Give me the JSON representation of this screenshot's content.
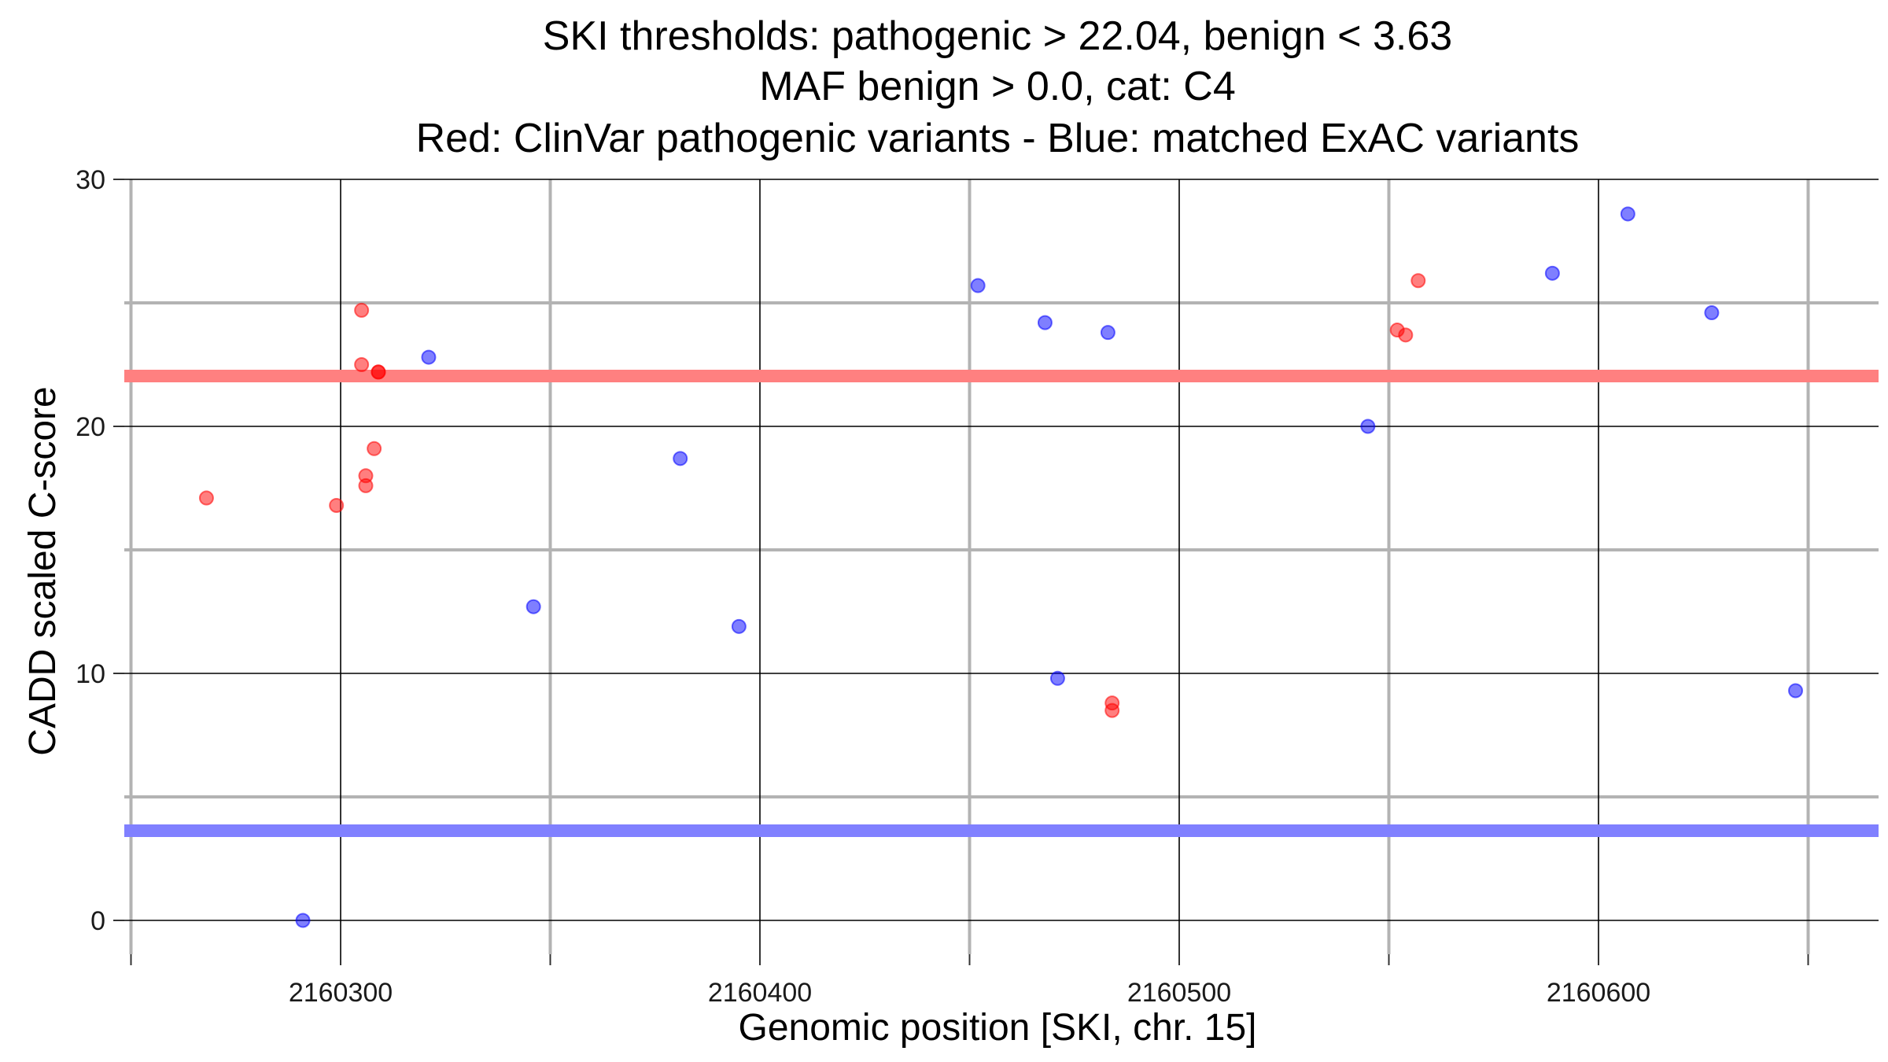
{
  "chart_data": {
    "type": "scatter",
    "title": [
      "SKI thresholds: pathogenic > 22.04, benign < 3.63",
      "MAF benign > 0.0, cat: C4",
      "Red: ClinVar pathogenic variants - Blue: matched ExAC variants"
    ],
    "xlabel": "Genomic position [SKI, chr. 15]",
    "ylabel": "CADD scaled C-score",
    "xlim": [
      2160250,
      2160665
    ],
    "ylim": [
      -1.5,
      30
    ],
    "x_major_ticks": [
      2160300,
      2160400,
      2160500,
      2160600
    ],
    "x_minor_ticks": [
      2160250,
      2160350,
      2160450,
      2160550,
      2160650
    ],
    "y_major_ticks": [
      0,
      10,
      20,
      30
    ],
    "y_minor_ticks": [
      5,
      15,
      25
    ],
    "grid": true,
    "thresholds": [
      {
        "name": "pathogenic",
        "value": 22.04,
        "color": "#ff8080"
      },
      {
        "name": "benign",
        "value": 3.63,
        "color": "#8080ff"
      }
    ],
    "series": [
      {
        "color": "#ff0000",
        "points": [
          {
            "x": 2160268,
            "y": 17.1
          },
          {
            "x": 2160299,
            "y": 16.8
          },
          {
            "x": 2160305,
            "y": 24.7
          },
          {
            "x": 2160305,
            "y": 22.5
          },
          {
            "x": 2160306,
            "y": 18.0
          },
          {
            "x": 2160306,
            "y": 17.6
          },
          {
            "x": 2160308,
            "y": 19.1
          },
          {
            "x": 2160309,
            "y": 22.2
          },
          {
            "x": 2160309,
            "y": 22.2
          },
          {
            "x": 2160484,
            "y": 8.8
          },
          {
            "x": 2160484,
            "y": 8.5
          },
          {
            "x": 2160552,
            "y": 23.9
          },
          {
            "x": 2160554,
            "y": 23.7
          },
          {
            "x": 2160557,
            "y": 25.9
          }
        ]
      },
      {
        "color": "#0000ff",
        "points": [
          {
            "x": 2160291,
            "y": 0.0
          },
          {
            "x": 2160321,
            "y": 22.8
          },
          {
            "x": 2160346,
            "y": 12.7
          },
          {
            "x": 2160381,
            "y": 18.7
          },
          {
            "x": 2160395,
            "y": 11.9
          },
          {
            "x": 2160452,
            "y": 25.7
          },
          {
            "x": 2160468,
            "y": 24.2
          },
          {
            "x": 2160471,
            "y": 9.8
          },
          {
            "x": 2160483,
            "y": 23.8
          },
          {
            "x": 2160545,
            "y": 20.0
          },
          {
            "x": 2160589,
            "y": 26.2
          },
          {
            "x": 2160607,
            "y": 28.6
          },
          {
            "x": 2160627,
            "y": 24.6
          },
          {
            "x": 2160647,
            "y": 9.3
          }
        ]
      }
    ]
  }
}
